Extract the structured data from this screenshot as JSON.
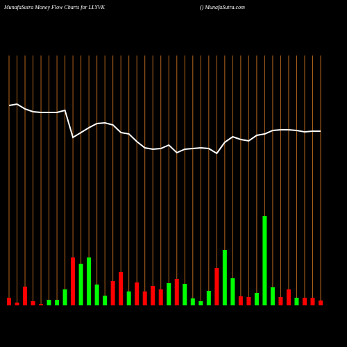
{
  "chart_data": {
    "type": "money-flow",
    "title": "MunafaSutra  Money Flow  Charts for LLYVK",
    "source": "() MunafaSutra.com",
    "categories": [
      null,
      null,
      null,
      null,
      null,
      null,
      null,
      null,
      null,
      null,
      null,
      null,
      null,
      null,
      null,
      null,
      null,
      null,
      null,
      null,
      null,
      null,
      null,
      null,
      null,
      null,
      null,
      null,
      null,
      null,
      null,
      null,
      null,
      null,
      null,
      null,
      null,
      null,
      null,
      null
    ],
    "ylim": [
      0,
      440
    ],
    "series": [
      {
        "kind": "bar",
        "values": [
          11,
          4,
          27,
          6,
          2,
          8,
          8,
          23,
          69,
          60,
          69,
          30,
          14,
          35,
          48,
          20,
          33,
          20,
          28,
          23,
          32,
          38,
          31,
          10,
          6,
          21,
          54,
          80,
          39,
          13,
          12,
          18,
          129,
          26,
          12,
          23,
          11,
          11,
          11,
          7
        ],
        "colors": [
          "#ff0000",
          "#ff0000",
          "#ff0000",
          "#ff0000",
          "#ff0000",
          "#00ff00",
          "#00ff00",
          "#00ff00",
          "#ff0000",
          "#00ff00",
          "#00ff00",
          "#00ff00",
          "#00ff00",
          "#ff0000",
          "#ff0000",
          "#00ff00",
          "#ff0000",
          "#ff0000",
          "#ff0000",
          "#ff0000",
          "#00ff00",
          "#ff0000",
          "#00ff00",
          "#00ff00",
          "#00ff00",
          "#00ff00",
          "#ff0000",
          "#00ff00",
          "#00ff00",
          "#ff0000",
          "#ff0000",
          "#00ff00",
          "#00ff00",
          "#00ff00",
          "#ff0000",
          "#ff0000",
          "#00ff00",
          "#ff0000",
          "#ff0000",
          "#ff0000"
        ]
      },
      {
        "kind": "line",
        "color": "#ffffff",
        "values": [
          288,
          290,
          283,
          279,
          278,
          278,
          278,
          281,
          242,
          249,
          256,
          262,
          263,
          260,
          249,
          247,
          236,
          227,
          225,
          226,
          231,
          220,
          225,
          226,
          227,
          226,
          219,
          235,
          243,
          239,
          237,
          245,
          247,
          252,
          253,
          253,
          252,
          250,
          251,
          251
        ]
      }
    ],
    "gridline_color": "#b5651d"
  }
}
